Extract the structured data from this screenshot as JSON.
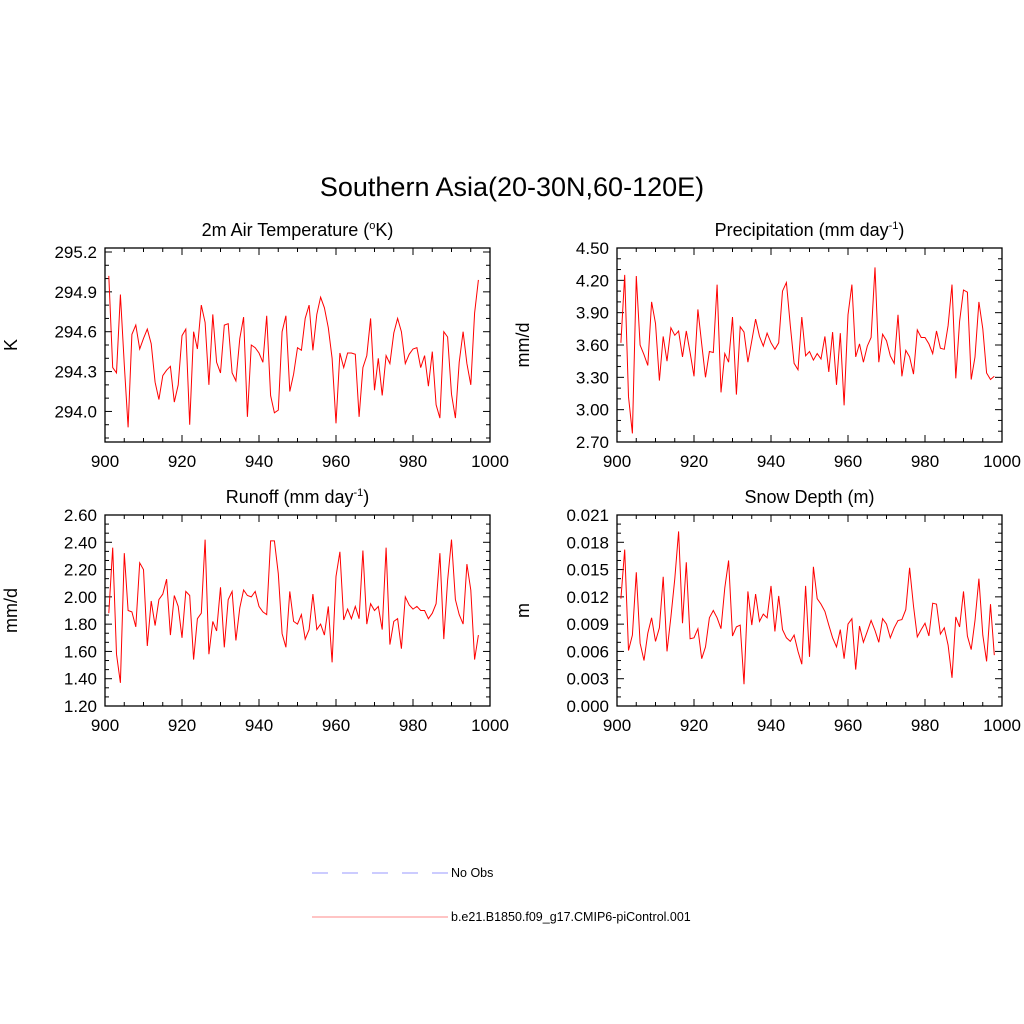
{
  "figure": {
    "title": "Southern Asia(20-30N,60-120E)"
  },
  "legend": {
    "position": "bottom-center",
    "items": [
      {
        "label": "No Obs",
        "color": "#9999ff",
        "style": "dashed"
      },
      {
        "label": "b.e21.B1850.f09_g17.CMIP6-piControl.001",
        "color": "#ff8888",
        "style": "solid"
      }
    ]
  },
  "chart_data": [
    {
      "type": "line",
      "title": "2m Air Temperature (oK)",
      "title_parts": {
        "pre": "2m Air Temperature (",
        "sup": "o",
        "post": "K)"
      },
      "ylabel": "K",
      "xlim": [
        900,
        1000
      ],
      "ylim": [
        293.77,
        295.23
      ],
      "xticks": [
        900,
        920,
        940,
        960,
        980,
        1000
      ],
      "yticks": [
        294.0,
        294.3,
        294.6,
        294.9,
        295.2
      ],
      "ytick_labels": [
        "294.0",
        "294.3",
        "294.6",
        "294.9",
        "295.2"
      ],
      "grid": false,
      "series": [
        {
          "color": "#ff0000",
          "x_start": 901,
          "values": [
            295.02,
            294.33,
            294.29,
            294.88,
            294.35,
            293.88,
            294.58,
            294.65,
            294.47,
            294.55,
            294.62,
            294.51,
            294.22,
            294.09,
            294.27,
            294.31,
            294.34,
            294.07,
            294.2,
            294.57,
            294.62,
            293.9,
            294.6,
            294.47,
            294.8,
            294.67,
            294.2,
            294.73,
            294.37,
            294.29,
            294.65,
            294.66,
            294.29,
            294.23,
            294.55,
            294.71,
            293.96,
            294.5,
            294.48,
            294.44,
            294.37,
            294.72,
            294.12,
            293.99,
            294.01,
            294.6,
            294.72,
            294.15,
            294.28,
            294.48,
            294.46,
            294.7,
            294.8,
            294.46,
            294.73,
            294.86,
            294.78,
            294.63,
            294.4,
            293.91,
            294.44,
            294.33,
            294.44,
            294.44,
            294.43,
            293.96,
            294.33,
            294.42,
            294.7,
            294.16,
            294.4,
            294.12,
            294.42,
            294.36,
            294.59,
            294.7,
            294.6,
            294.36,
            294.43,
            294.47,
            294.48,
            294.33,
            294.42,
            294.19,
            294.45,
            294.05,
            293.95,
            294.6,
            294.56,
            294.13,
            293.95,
            294.37,
            294.6,
            294.36,
            294.2,
            294.74,
            294.99
          ]
        }
      ]
    },
    {
      "type": "line",
      "title": "Precipitation (mm day-1)",
      "title_parts": {
        "pre": "Precipitation (mm day",
        "sup": "-1",
        "post": ")"
      },
      "ylabel": "mm/d",
      "xlim": [
        900,
        1000
      ],
      "ylim": [
        2.7,
        4.5
      ],
      "xticks": [
        900,
        920,
        940,
        960,
        980,
        1000
      ],
      "yticks": [
        2.7,
        3.0,
        3.3,
        3.6,
        3.9,
        4.2,
        4.5
      ],
      "ytick_labels": [
        "2.70",
        "3.00",
        "3.30",
        "3.60",
        "3.90",
        "4.20",
        "4.50"
      ],
      "grid": false,
      "series": [
        {
          "color": "#ff0000",
          "x_start": 901,
          "values": [
            3.62,
            4.25,
            3.12,
            2.78,
            4.24,
            3.6,
            3.51,
            3.41,
            4.0,
            3.8,
            3.27,
            3.68,
            3.45,
            3.76,
            3.69,
            3.73,
            3.49,
            3.73,
            3.53,
            3.31,
            3.93,
            3.61,
            3.3,
            3.54,
            3.53,
            4.16,
            3.16,
            3.52,
            3.44,
            3.86,
            3.14,
            3.77,
            3.72,
            3.44,
            3.64,
            3.84,
            3.68,
            3.59,
            3.71,
            3.62,
            3.56,
            3.62,
            4.1,
            4.18,
            3.78,
            3.43,
            3.37,
            3.86,
            3.5,
            3.54,
            3.46,
            3.52,
            3.47,
            3.68,
            3.35,
            3.72,
            3.23,
            3.71,
            3.04,
            3.88,
            4.16,
            3.49,
            3.61,
            3.44,
            3.59,
            3.67,
            4.32,
            3.44,
            3.7,
            3.64,
            3.5,
            3.43,
            3.88,
            3.31,
            3.55,
            3.49,
            3.33,
            3.74,
            3.67,
            3.67,
            3.61,
            3.52,
            3.73,
            3.57,
            3.56,
            3.78,
            4.16,
            3.29,
            3.82,
            4.11,
            4.09,
            3.28,
            3.49,
            4.0,
            3.75,
            3.34,
            3.28,
            3.31
          ]
        }
      ]
    },
    {
      "type": "line",
      "title": "Runoff (mm day-1)",
      "title_parts": {
        "pre": "Runoff (mm day",
        "sup": "-1",
        "post": ")"
      },
      "ylabel": "mm/d",
      "xlim": [
        900,
        1000
      ],
      "ylim": [
        1.2,
        2.6
      ],
      "xticks": [
        900,
        920,
        940,
        960,
        980,
        1000
      ],
      "yticks": [
        1.2,
        1.4,
        1.6,
        1.8,
        2.0,
        2.2,
        2.4,
        2.6
      ],
      "ytick_labels": [
        "1.20",
        "1.40",
        "1.60",
        "1.80",
        "2.00",
        "2.20",
        "2.40",
        "2.60"
      ],
      "grid": false,
      "series": [
        {
          "color": "#ff0000",
          "x_start": 901,
          "values": [
            1.88,
            2.36,
            1.58,
            1.37,
            2.32,
            1.9,
            1.89,
            1.78,
            2.25,
            2.2,
            1.64,
            1.97,
            1.79,
            1.98,
            2.02,
            2.13,
            1.72,
            2.01,
            1.93,
            1.7,
            2.04,
            2.01,
            1.54,
            1.84,
            1.88,
            2.42,
            1.58,
            1.82,
            1.75,
            2.07,
            1.63,
            1.98,
            2.04,
            1.68,
            1.92,
            2.05,
            2.01,
            2.0,
            2.04,
            1.93,
            1.89,
            1.87,
            2.41,
            2.41,
            2.17,
            1.73,
            1.63,
            2.04,
            1.82,
            1.8,
            1.87,
            1.69,
            1.76,
            2.02,
            1.76,
            1.8,
            1.72,
            1.93,
            1.52,
            2.15,
            2.33,
            1.83,
            1.91,
            1.84,
            1.93,
            1.84,
            2.34,
            1.8,
            1.95,
            1.9,
            1.93,
            1.76,
            2.36,
            1.65,
            1.82,
            1.84,
            1.62,
            2.0,
            1.94,
            1.91,
            1.93,
            1.9,
            1.9,
            1.84,
            1.88,
            1.95,
            2.32,
            1.69,
            2.12,
            2.42,
            1.98,
            1.87,
            1.8,
            2.24,
            2.05,
            1.54,
            1.72
          ]
        }
      ]
    },
    {
      "type": "line",
      "title": "Snow Depth (m)",
      "title_parts": {
        "pre": "Snow Depth (m)",
        "sup": "",
        "post": ""
      },
      "ylabel": "m",
      "xlim": [
        900,
        1000
      ],
      "ylim": [
        0.0,
        0.021
      ],
      "xticks": [
        900,
        920,
        940,
        960,
        980,
        1000
      ],
      "yticks": [
        0.0,
        0.003,
        0.006,
        0.009,
        0.012,
        0.015,
        0.018,
        0.021
      ],
      "ytick_labels": [
        "0.000",
        "0.003",
        "0.006",
        "0.009",
        "0.012",
        "0.015",
        "0.018",
        "0.021"
      ],
      "grid": false,
      "series": [
        {
          "color": "#ff0000",
          "x_start": 901,
          "values": [
            0.0118,
            0.0172,
            0.0061,
            0.0078,
            0.0147,
            0.0069,
            0.005,
            0.008,
            0.0097,
            0.0071,
            0.0086,
            0.0142,
            0.006,
            0.0098,
            0.014,
            0.0192,
            0.0091,
            0.0158,
            0.0074,
            0.0075,
            0.0085,
            0.0052,
            0.0065,
            0.0097,
            0.0105,
            0.0097,
            0.0085,
            0.013,
            0.016,
            0.0077,
            0.0087,
            0.0089,
            0.0024,
            0.0126,
            0.0089,
            0.0123,
            0.0093,
            0.0101,
            0.0097,
            0.0132,
            0.0082,
            0.0121,
            0.0084,
            0.0075,
            0.0071,
            0.0078,
            0.006,
            0.0046,
            0.0132,
            0.0054,
            0.0153,
            0.0118,
            0.0112,
            0.0104,
            0.0089,
            0.0075,
            0.0065,
            0.0084,
            0.0052,
            0.009,
            0.0096,
            0.004,
            0.0088,
            0.007,
            0.0082,
            0.0094,
            0.0083,
            0.007,
            0.0096,
            0.009,
            0.0075,
            0.0086,
            0.0094,
            0.0095,
            0.0106,
            0.0152,
            0.011,
            0.0076,
            0.0084,
            0.0091,
            0.0077,
            0.0113,
            0.0112,
            0.0079,
            0.0086,
            0.0067,
            0.0031,
            0.0098,
            0.0087,
            0.0126,
            0.0077,
            0.0062,
            0.0094,
            0.014,
            0.0078,
            0.0049,
            0.0112,
            0.0056
          ]
        }
      ]
    }
  ]
}
